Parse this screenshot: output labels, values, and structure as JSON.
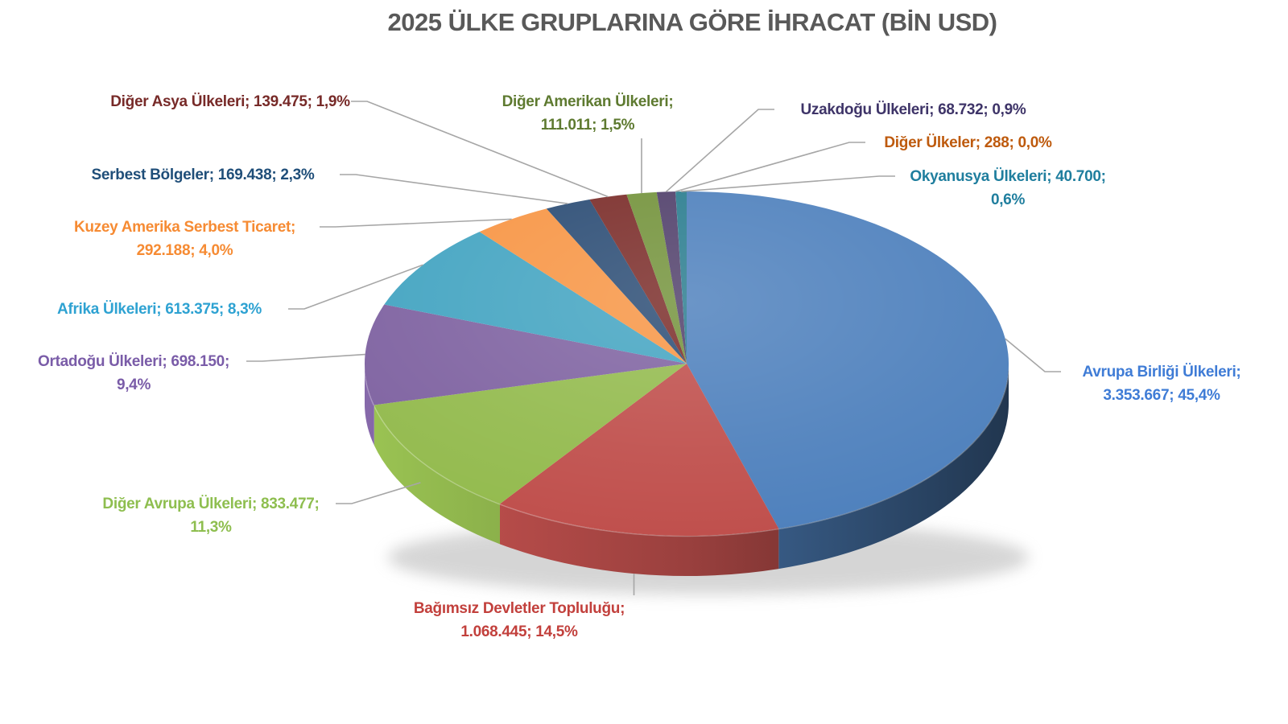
{
  "title": "2025 ÜLKE GRUPLARINA GÖRE İHRACAT (BİN USD)",
  "chart_data": {
    "type": "pie",
    "title": "2025 ÜLKE GRUPLARINA GÖRE İHRACAT (BİN USD)",
    "unit": "BİN USD",
    "start_angle_deg": -90,
    "direction": "clockwise",
    "legend_position": "none",
    "label_format": "{label}; {value}; {pct}",
    "slices": [
      {
        "id": "avrupa-birligi",
        "label": "Avrupa Birliği Ülkeleri",
        "value": 3353667,
        "value_display": "3.353.667",
        "pct": 45.4,
        "pct_display": "45,4%",
        "color": "#4F81BD",
        "label_color": "#3F7CD6"
      },
      {
        "id": "bagimsiz",
        "label": "Bağımsız Devletler Topluluğu",
        "value": 1068445,
        "value_display": "1.068.445",
        "pct": 14.5,
        "pct_display": "14,5%",
        "color": "#C0504D",
        "label_color": "#C2403C"
      },
      {
        "id": "diger-avrupa",
        "label": "Diğer Avrupa Ülkeleri",
        "value": 833477,
        "value_display": "833.477",
        "pct": 11.3,
        "pct_display": "11,3%",
        "color": "#94BB4F",
        "label_color": "#8EBE4F"
      },
      {
        "id": "ortadogu",
        "label": "Ortadoğu Ülkeleri",
        "value": 698150,
        "value_display": "698.150",
        "pct": 9.4,
        "pct_display": "9,4%",
        "color": "#8064A2",
        "label_color": "#7A5CA8"
      },
      {
        "id": "afrika",
        "label": "Afrika Ülkeleri",
        "value": 613375,
        "value_display": "613.375",
        "pct": 8.3,
        "pct_display": "8,3%",
        "color": "#45A5C2",
        "label_color": "#2EA2D2"
      },
      {
        "id": "kuzey-amerika",
        "label": "Kuzey Amerika Serbest Ticaret",
        "value": 292188,
        "value_display": "292.188",
        "pct": 4.0,
        "pct_display": "4,0%",
        "color": "#F79646",
        "label_color": "#F68B33"
      },
      {
        "id": "serbest",
        "label": "Serbest Bölgeler",
        "value": 169438,
        "value_display": "169.438",
        "pct": 2.3,
        "pct_display": "2,3%",
        "color": "#2C4D75",
        "label_color": "#1F4E79"
      },
      {
        "id": "diger-asya",
        "label": "Diğer Asya Ülkeleri",
        "value": 139475,
        "value_display": "139.475",
        "pct": 1.9,
        "pct_display": "1,9%",
        "color": "#7B2D2A",
        "label_color": "#772A28"
      },
      {
        "id": "diger-amerikan",
        "label": "Diğer Amerikan Ülkeleri",
        "value": 111011,
        "value_display": "111.011",
        "pct": 1.5,
        "pct_display": "1,5%",
        "color": "#74933C",
        "label_color": "#5E7A30"
      },
      {
        "id": "uzakdogu",
        "label": "Uzakdoğu Ülkeleri",
        "value": 68732,
        "value_display": "68.732",
        "pct": 0.9,
        "pct_display": "0,9%",
        "color": "#51406B",
        "label_color": "#3E3468"
      },
      {
        "id": "diger-ulkeler",
        "label": "Diğer Ülkeler",
        "value": 288,
        "value_display": "288",
        "pct": 0.0,
        "pct_display": "0,0%",
        "color": "#B65708",
        "label_color": "#BE5A0D"
      },
      {
        "id": "okyanusya",
        "label": "Okyanusya Ülkeleri",
        "value": 40700,
        "value_display": "40.700",
        "pct": 0.6,
        "pct_display": "0,6%",
        "color": "#2B7D8F",
        "label_color": "#1F7E9E"
      }
    ],
    "leader_line_color": "#A6A6A6",
    "title_color": "#595959"
  }
}
